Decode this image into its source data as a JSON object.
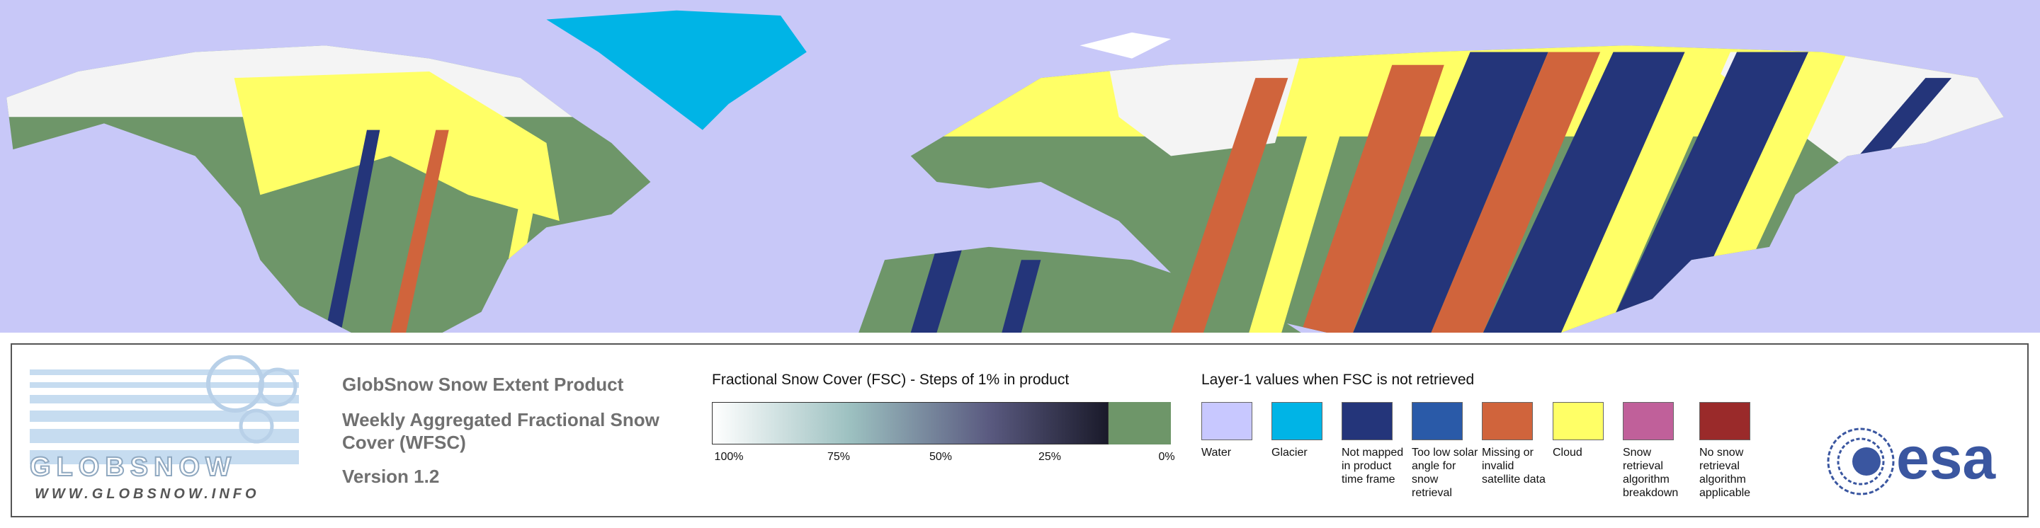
{
  "logo": {
    "name": "GLOBSNOW",
    "url": "WWW.GLOBSNOW.INFO"
  },
  "product": {
    "title": "GlobSnow Snow Extent Product",
    "subtitle": "Weekly Aggregated Fractional Snow Cover (WFSC)",
    "version": "Version 1.2"
  },
  "fsc_legend": {
    "title": "Fractional Snow Cover (FSC) - Steps of 1% in product",
    "labels": [
      "100%",
      "75%",
      "50%",
      "25%",
      "0%"
    ]
  },
  "layer1_legend": {
    "title": "Layer-1 values when FSC is not retrieved",
    "items": [
      {
        "label": "Water",
        "color": "#c8c8ff"
      },
      {
        "label": "Glacier",
        "color": "#00b4e6"
      },
      {
        "label": "Not mapped in product time frame",
        "color": "#24357a"
      },
      {
        "label": "Too low solar angle for snow retrieval",
        "color": "#2a5aa8"
      },
      {
        "label": "Missing or invalid satellite data",
        "color": "#d0643c"
      },
      {
        "label": "Cloud",
        "color": "#ffff66"
      },
      {
        "label": "Snow retrieval algorithm breakdown",
        "color": "#c0609a"
      },
      {
        "label": "No snow retrieval algorithm applicable",
        "color": "#9a2a2a"
      }
    ]
  },
  "esa": "esa"
}
